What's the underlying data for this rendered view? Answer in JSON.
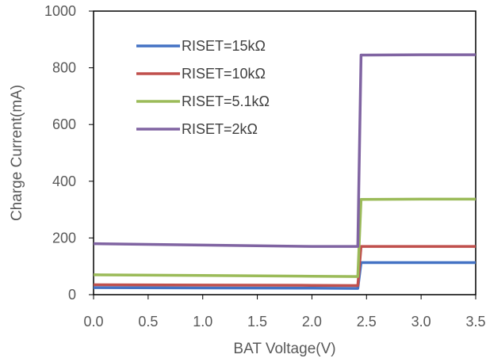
{
  "chart_data": {
    "type": "line",
    "title": "",
    "xlabel": "BAT Voltage(V)",
    "ylabel": "Charge Current(mA)",
    "xlim": [
      0,
      3.5
    ],
    "ylim": [
      0,
      1000
    ],
    "x_ticks": [
      "0.0",
      "0.5",
      "1.0",
      "1.5",
      "2.0",
      "2.5",
      "3.0",
      "3.5"
    ],
    "y_ticks": [
      "0",
      "200",
      "400",
      "600",
      "800",
      "1000"
    ],
    "grid": false,
    "legend_position": "upper-left inside plot",
    "series": [
      {
        "name": "RISET=15kΩ",
        "color": "#4472C4",
        "x": [
          0.0,
          2.0,
          2.42,
          2.45,
          3.0,
          3.5
        ],
        "y": [
          25,
          23,
          22,
          113,
          113,
          113
        ]
      },
      {
        "name": "RISET=10kΩ",
        "color": "#C0504D",
        "x": [
          0.0,
          2.0,
          2.42,
          2.45,
          3.0,
          3.5
        ],
        "y": [
          35,
          33,
          32,
          170,
          170,
          170
        ]
      },
      {
        "name": "RISET=5.1kΩ",
        "color": "#9BBB59",
        "x": [
          0.0,
          2.0,
          2.42,
          2.45,
          3.0,
          3.5
        ],
        "y": [
          70,
          65,
          64,
          336,
          337,
          337
        ]
      },
      {
        "name": "RISET=2kΩ",
        "color": "#8064A2",
        "x": [
          0.0,
          1.0,
          2.0,
          2.42,
          2.45,
          2.5,
          3.0,
          3.5
        ],
        "y": [
          180,
          175,
          170,
          170,
          845,
          845,
          846,
          846
        ]
      }
    ]
  }
}
